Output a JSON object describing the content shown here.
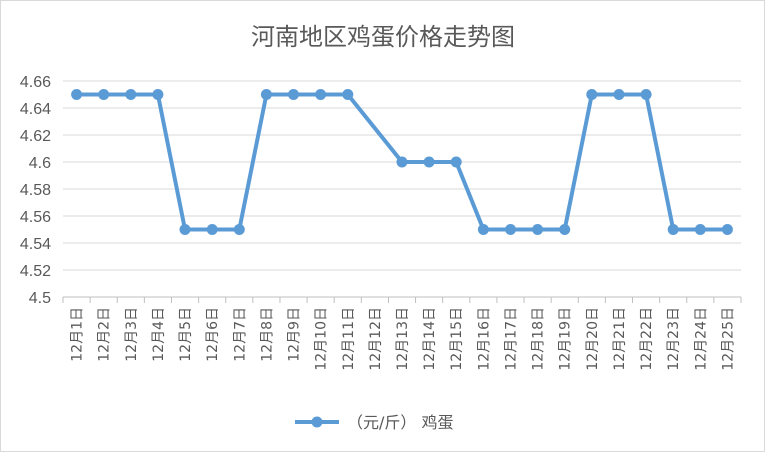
{
  "chart_data": {
    "type": "line",
    "title": "河南地区鸡蛋价格走势图",
    "xlabel": "",
    "ylabel": "",
    "categories": [
      "12月1日",
      "12月2日",
      "12月3日",
      "12月4日",
      "12月5日",
      "12月6日",
      "12月7日",
      "12月8日",
      "12月9日",
      "12月10日",
      "12月11日",
      "12月12日",
      "12月13日",
      "12月14日",
      "12月15日",
      "12月16日",
      "12月17日",
      "12月18日",
      "12月19日",
      "12月20日",
      "12月21日",
      "12月22日",
      "12月23日",
      "12月24日",
      "12月25日"
    ],
    "series": [
      {
        "name": "（元/斤） 鸡蛋",
        "color": "#5b9bd5",
        "values": [
          4.65,
          4.65,
          4.65,
          4.65,
          4.55,
          4.55,
          4.55,
          4.65,
          4.65,
          4.65,
          4.65,
          null,
          4.6,
          4.6,
          4.6,
          4.55,
          4.55,
          4.55,
          4.55,
          4.65,
          4.65,
          4.65,
          4.55,
          4.55,
          4.55
        ]
      }
    ],
    "ylim": [
      4.5,
      4.66
    ],
    "yticks": [
      "4.66",
      "4.64",
      "4.62",
      "4.6",
      "4.58",
      "4.56",
      "4.54",
      "4.52",
      "4.5"
    ],
    "grid": true,
    "legend": "bottom"
  }
}
